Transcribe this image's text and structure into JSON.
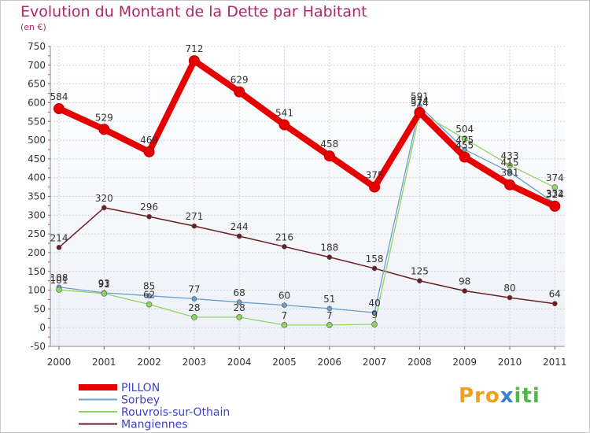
{
  "title": "Evolution du Montant de la Dette par Habitant",
  "unit": "(en €)",
  "logo": {
    "parts": [
      "Pro",
      "x",
      "iti"
    ],
    "colors": [
      "#f0a020",
      "#3a7fd0",
      "#50b848"
    ]
  },
  "chart_data": {
    "type": "line",
    "x": [
      "2000",
      "2001",
      "2002",
      "2003",
      "2004",
      "2005",
      "2006",
      "2007",
      "2008",
      "2009",
      "2010",
      "2011"
    ],
    "ylim": [
      -50,
      750
    ],
    "yticks": [
      -50,
      0,
      50,
      100,
      150,
      200,
      250,
      300,
      350,
      400,
      450,
      500,
      550,
      600,
      650,
      700,
      750
    ],
    "grid": true,
    "legend_position": "bottom-left",
    "series": [
      {
        "name": "PILLON",
        "color": "#e60000",
        "values": [
          584,
          529,
          469,
          712,
          629,
          541,
          458,
          375,
          574,
          455,
          381,
          324
        ]
      },
      {
        "name": "Sorbey",
        "color": "#6a9fd0",
        "values": [
          108,
          93,
          85,
          77,
          68,
          60,
          51,
          40,
          591,
          475,
          415,
          332
        ]
      },
      {
        "name": "Rouvrois-sur-Othain",
        "color": "#8fd463",
        "values": [
          101,
          91,
          62,
          28,
          28,
          7,
          7,
          9,
          574,
          504,
          433,
          374
        ]
      },
      {
        "name": "Mangiennes",
        "color": "#6b1f24",
        "values": [
          214,
          320,
          296,
          271,
          244,
          216,
          188,
          158,
          125,
          98,
          80,
          64
        ]
      }
    ]
  }
}
